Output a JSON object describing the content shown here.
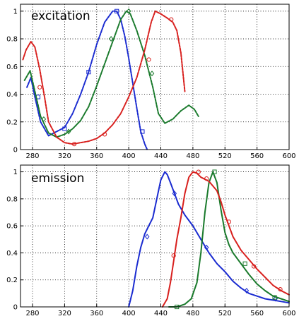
{
  "colors": {
    "blue": "#1a2bd0",
    "green": "#1a7a2c",
    "red": "#d8201e"
  },
  "chart_data": [
    {
      "type": "line",
      "title": "excitation",
      "xlim": [
        265,
        600
      ],
      "ylim": [
        0,
        1.05
      ],
      "x_ticks": [
        280,
        320,
        360,
        400,
        440,
        480,
        520,
        560,
        600
      ],
      "y_ticks": [
        0,
        0.2,
        0.4,
        0.6,
        0.8,
        1
      ],
      "y_tick_labels": [
        "0",
        "0.2",
        "0.4",
        "0.6",
        "0.8",
        "1"
      ],
      "grid": true,
      "line_style": "dashed",
      "series": [
        {
          "color": "blue",
          "marker": "square",
          "x": [
            273,
            278,
            283,
            290,
            300,
            310,
            320,
            330,
            340,
            350,
            360,
            370,
            380,
            385,
            390,
            395,
            400,
            405,
            410,
            415,
            420,
            423
          ],
          "y": [
            0.45,
            0.52,
            0.38,
            0.2,
            0.1,
            0.13,
            0.16,
            0.26,
            0.4,
            0.56,
            0.76,
            0.92,
            1.0,
            1.0,
            0.94,
            0.82,
            0.66,
            0.48,
            0.3,
            0.13,
            0.04,
            0.0
          ],
          "markers": [
            [
              287,
              0.38
            ],
            [
              320,
              0.15
            ],
            [
              350,
              0.56
            ],
            [
              385,
              1.0
            ],
            [
              417,
              0.13
            ]
          ]
        },
        {
          "color": "green",
          "marker": "diamond",
          "x": [
            270,
            277,
            283,
            290,
            300,
            310,
            320,
            330,
            340,
            350,
            360,
            370,
            380,
            390,
            397,
            402,
            410,
            420,
            430,
            437,
            445,
            455,
            465,
            475,
            482,
            487
          ],
          "y": [
            0.5,
            0.57,
            0.42,
            0.24,
            0.12,
            0.09,
            0.11,
            0.15,
            0.21,
            0.31,
            0.46,
            0.62,
            0.78,
            0.94,
            1.0,
            0.98,
            0.86,
            0.68,
            0.45,
            0.26,
            0.19,
            0.22,
            0.28,
            0.32,
            0.29,
            0.24
          ],
          "markers": [
            [
              294,
              0.22
            ],
            [
              325,
              0.13
            ],
            [
              378,
              0.8
            ],
            [
              400,
              1.0
            ],
            [
              429,
              0.55
            ]
          ]
        },
        {
          "color": "red",
          "marker": "circle",
          "x": [
            268,
            272,
            278,
            283,
            289,
            295,
            300,
            310,
            320,
            330,
            340,
            350,
            360,
            370,
            380,
            390,
            400,
            410,
            420,
            428,
            433,
            440,
            448,
            455,
            460,
            465,
            470
          ],
          "y": [
            0.65,
            0.72,
            0.78,
            0.74,
            0.58,
            0.38,
            0.2,
            0.09,
            0.05,
            0.04,
            0.05,
            0.06,
            0.08,
            0.12,
            0.18,
            0.26,
            0.38,
            0.52,
            0.72,
            0.92,
            1.0,
            0.98,
            0.95,
            0.92,
            0.86,
            0.7,
            0.42
          ],
          "markers": [
            [
              289,
              0.45
            ],
            [
              332,
              0.04
            ],
            [
              370,
              0.11
            ],
            [
              425,
              0.65
            ],
            [
              453,
              0.94
            ]
          ]
        }
      ]
    },
    {
      "type": "line",
      "title": "emission",
      "xlim": [
        265,
        600
      ],
      "ylim": [
        0,
        1.05
      ],
      "x_ticks": [
        280,
        320,
        360,
        400,
        440,
        480,
        520,
        560,
        600
      ],
      "y_ticks": [
        0,
        0.2,
        0.4,
        0.6,
        0.8,
        1
      ],
      "y_tick_labels": [
        "0",
        "0.2",
        "0.4",
        "0.6",
        "0.8",
        "1"
      ],
      "grid": true,
      "line_style": "solid",
      "series": [
        {
          "color": "blue",
          "marker": "diamond",
          "x": [
            400,
            405,
            410,
            415,
            420,
            425,
            430,
            435,
            440,
            445,
            448,
            452,
            457,
            462,
            470,
            480,
            490,
            500,
            510,
            520,
            530,
            540,
            550,
            560,
            570,
            580,
            590,
            600
          ],
          "y": [
            0.0,
            0.12,
            0.3,
            0.44,
            0.54,
            0.6,
            0.66,
            0.8,
            0.94,
            1.0,
            0.98,
            0.92,
            0.84,
            0.76,
            0.68,
            0.6,
            0.5,
            0.4,
            0.32,
            0.26,
            0.19,
            0.14,
            0.1,
            0.08,
            0.06,
            0.05,
            0.04,
            0.03
          ],
          "markers": [
            [
              423,
              0.52
            ],
            [
              457,
              0.84
            ],
            [
              497,
              0.44
            ],
            [
              547,
              0.12
            ],
            [
              583,
              0.06
            ]
          ]
        },
        {
          "color": "green",
          "marker": "square",
          "x": [
            450,
            460,
            470,
            478,
            485,
            490,
            495,
            500,
            505,
            510,
            515,
            520,
            525,
            530,
            540,
            550,
            560,
            570,
            580,
            590,
            600
          ],
          "y": [
            0.0,
            0.0,
            0.02,
            0.06,
            0.18,
            0.4,
            0.7,
            0.92,
            1.0,
            0.92,
            0.72,
            0.55,
            0.46,
            0.4,
            0.32,
            0.24,
            0.17,
            0.12,
            0.08,
            0.06,
            0.04
          ],
          "markers": [
            [
              460,
              0.0
            ],
            [
              507,
              1.0
            ],
            [
              545,
              0.32
            ],
            [
              582,
              0.07
            ]
          ]
        },
        {
          "color": "red",
          "marker": "circle",
          "x": [
            442,
            448,
            452,
            456,
            460,
            465,
            470,
            475,
            480,
            485,
            490,
            500,
            510,
            515,
            520,
            525,
            530,
            540,
            550,
            560,
            570,
            580,
            590,
            600
          ],
          "y": [
            0.0,
            0.06,
            0.18,
            0.34,
            0.5,
            0.66,
            0.84,
            0.96,
            1.0,
            0.99,
            0.96,
            0.93,
            0.86,
            0.78,
            0.68,
            0.6,
            0.52,
            0.42,
            0.35,
            0.28,
            0.22,
            0.16,
            0.12,
            0.09
          ],
          "markers": [
            [
              456,
              0.38
            ],
            [
              487,
              1.0
            ],
            [
              497,
              0.95
            ],
            [
              525,
              0.63
            ],
            [
              556,
              0.3
            ],
            [
              589,
              0.13
            ]
          ]
        }
      ]
    }
  ]
}
